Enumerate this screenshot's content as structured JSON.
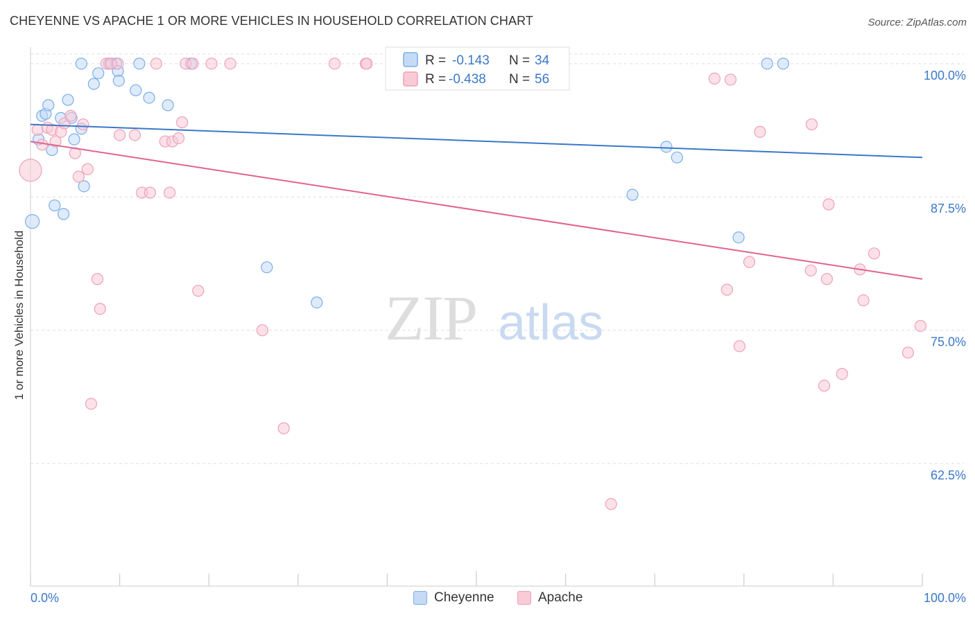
{
  "chart_data": {
    "type": "scatter",
    "title": "CHEYENNE VS APACHE 1 OR MORE VEHICLES IN HOUSEHOLD CORRELATION CHART",
    "source": "Source: ZipAtlas.com",
    "xlabel": "",
    "ylabel": "1 or more Vehicles in Household",
    "xlim": [
      0,
      100
    ],
    "ylim": [
      51.0,
      100.9
    ],
    "x_tick_labels": [
      "0.0%",
      "100.0%"
    ],
    "y_ticks": [
      {
        "value": 100.0,
        "label": "100.0%"
      },
      {
        "value": 87.5,
        "label": "87.5%"
      },
      {
        "value": 75.0,
        "label": "75.0%"
      },
      {
        "value": 62.5,
        "label": "62.5%"
      }
    ],
    "grid": "dashed horizontal",
    "watermark": "ZIPatlas",
    "legend_box": [
      {
        "r_label": "R =",
        "r_value": "-0.143",
        "n_label": "N =",
        "n_value": "34"
      },
      {
        "r_label": "R =",
        "r_value": "-0.438",
        "n_label": "N =",
        "n_value": "56"
      }
    ],
    "series": [
      {
        "name": "Cheyenne",
        "color": "#7aaee8",
        "fill": "#c5dbf5",
        "line_color": "#3a78c8",
        "trend": {
          "x0": 0,
          "y0": 94.3,
          "x1": 100,
          "y1": 91.2
        },
        "points": [
          [
            0.2,
            85.2,
            10
          ],
          [
            0.9,
            92.9,
            8
          ],
          [
            1.3,
            95.1,
            8
          ],
          [
            1.7,
            95.3,
            8
          ],
          [
            2.0,
            96.1,
            8
          ],
          [
            2.4,
            91.9,
            8
          ],
          [
            2.7,
            86.7,
            8
          ],
          [
            3.4,
            94.9,
            8
          ],
          [
            3.7,
            85.9,
            8
          ],
          [
            4.2,
            96.6,
            8
          ],
          [
            4.6,
            94.9,
            8
          ],
          [
            4.9,
            92.9,
            8
          ],
          [
            5.7,
            93.9,
            8
          ],
          [
            6.0,
            88.5,
            8
          ],
          [
            7.1,
            98.1,
            8
          ],
          [
            7.6,
            99.1,
            8
          ],
          [
            5.7,
            100.0,
            8
          ],
          [
            8.8,
            100.0,
            8
          ],
          [
            9.1,
            100.0,
            8
          ],
          [
            9.6,
            100.0,
            8
          ],
          [
            9.8,
            99.3,
            8
          ],
          [
            9.9,
            98.4,
            8
          ],
          [
            11.8,
            97.5,
            8
          ],
          [
            12.2,
            100.0,
            8
          ],
          [
            13.3,
            96.8,
            8
          ],
          [
            15.4,
            96.1,
            8
          ],
          [
            18.0,
            100.0,
            8
          ],
          [
            26.5,
            80.9,
            8
          ],
          [
            32.1,
            77.6,
            8
          ],
          [
            67.5,
            87.7,
            8
          ],
          [
            71.3,
            92.2,
            8
          ],
          [
            72.5,
            91.2,
            8
          ],
          [
            79.4,
            83.7,
            8
          ],
          [
            82.6,
            100.0,
            8
          ],
          [
            84.4,
            100.0,
            8
          ]
        ]
      },
      {
        "name": "Apache",
        "color": "#f0a0b8",
        "fill": "#f8cbd7",
        "line_color": "#e0628e",
        "trend": {
          "x0": 0,
          "y0": 92.7,
          "x1": 100,
          "y1": 79.8
        },
        "points": [
          [
            0.0,
            90.0,
            16
          ],
          [
            0.8,
            93.8,
            8
          ],
          [
            1.3,
            92.4,
            8
          ],
          [
            1.9,
            94.0,
            8
          ],
          [
            2.4,
            93.8,
            8
          ],
          [
            2.8,
            92.7,
            8
          ],
          [
            3.4,
            93.6,
            8
          ],
          [
            3.8,
            94.4,
            8
          ],
          [
            4.5,
            95.1,
            8
          ],
          [
            5.0,
            91.6,
            8
          ],
          [
            5.4,
            89.4,
            8
          ],
          [
            5.9,
            94.3,
            8
          ],
          [
            6.4,
            90.1,
            8
          ],
          [
            7.5,
            79.8,
            8
          ],
          [
            7.8,
            77.0,
            8
          ],
          [
            6.8,
            68.1,
            8
          ],
          [
            8.5,
            100.0,
            8
          ],
          [
            9.0,
            100.0,
            8
          ],
          [
            9.8,
            100.0,
            8
          ],
          [
            10.0,
            93.3,
            8
          ],
          [
            11.7,
            93.3,
            8
          ],
          [
            12.5,
            87.9,
            8
          ],
          [
            13.4,
            87.9,
            8
          ],
          [
            14.1,
            100.0,
            8
          ],
          [
            15.1,
            92.7,
            8
          ],
          [
            15.6,
            87.9,
            8
          ],
          [
            15.9,
            92.7,
            8
          ],
          [
            16.6,
            93.0,
            8
          ],
          [
            17.0,
            94.5,
            8
          ],
          [
            17.4,
            100.0,
            8
          ],
          [
            18.2,
            100.0,
            8
          ],
          [
            18.8,
            78.7,
            8
          ],
          [
            20.3,
            100.0,
            8
          ],
          [
            22.4,
            100.0,
            8
          ],
          [
            26.0,
            75.0,
            8
          ],
          [
            28.4,
            65.8,
            8
          ],
          [
            34.1,
            100.0,
            8
          ],
          [
            37.6,
            100.0,
            8
          ],
          [
            37.7,
            100.0,
            8
          ],
          [
            65.1,
            58.7,
            8
          ],
          [
            76.7,
            98.6,
            8
          ],
          [
            78.5,
            98.5,
            8
          ],
          [
            78.1,
            78.8,
            8
          ],
          [
            79.5,
            73.5,
            8
          ],
          [
            80.6,
            81.4,
            8
          ],
          [
            81.8,
            93.6,
            8
          ],
          [
            87.5,
            80.6,
            8
          ],
          [
            87.6,
            94.3,
            8
          ],
          [
            89.0,
            69.8,
            8
          ],
          [
            89.3,
            79.8,
            8
          ],
          [
            89.5,
            86.8,
            8
          ],
          [
            91.0,
            70.9,
            8
          ],
          [
            93.0,
            80.7,
            8
          ],
          [
            93.4,
            77.8,
            8
          ],
          [
            94.6,
            82.2,
            8
          ],
          [
            98.4,
            72.9,
            8
          ],
          [
            99.8,
            75.4,
            8
          ]
        ]
      }
    ]
  }
}
